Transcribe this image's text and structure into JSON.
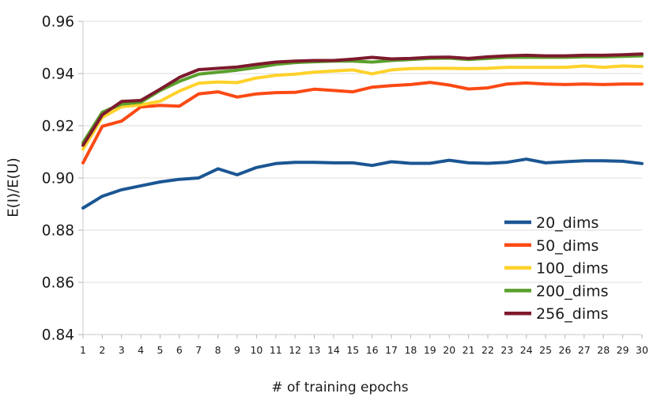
{
  "chart_data": {
    "type": "line",
    "title": "",
    "xlabel": "# of training epochs",
    "ylabel": "E(I)/E(U)",
    "x": [
      1,
      2,
      3,
      4,
      5,
      6,
      7,
      8,
      9,
      10,
      11,
      12,
      13,
      14,
      15,
      16,
      17,
      18,
      19,
      20,
      21,
      22,
      23,
      24,
      25,
      26,
      27,
      28,
      29,
      30
    ],
    "ylim": [
      0.84,
      0.96
    ],
    "ytick_step": 0.02,
    "grid": "horizontal",
    "legend_position": "inside-bottom-right",
    "series": [
      {
        "name": "20_dims",
        "color": "#1b5693",
        "values": [
          0.8885,
          0.893,
          0.8955,
          0.897,
          0.8985,
          0.8995,
          0.9,
          0.9035,
          0.9012,
          0.904,
          0.9055,
          0.906,
          0.906,
          0.9058,
          0.9058,
          0.9048,
          0.9062,
          0.9056,
          0.9056,
          0.9068,
          0.9058,
          0.9056,
          0.906,
          0.9072,
          0.9058,
          0.9062,
          0.9066,
          0.9066,
          0.9064,
          0.9055
        ]
      },
      {
        "name": "50_dims",
        "color": "#fb4a14",
        "values": [
          0.9058,
          0.9198,
          0.9218,
          0.9272,
          0.9278,
          0.9275,
          0.9322,
          0.933,
          0.931,
          0.9322,
          0.9327,
          0.9328,
          0.934,
          0.9335,
          0.933,
          0.9348,
          0.9354,
          0.9358,
          0.9366,
          0.9356,
          0.9341,
          0.9345,
          0.936,
          0.9364,
          0.936,
          0.9358,
          0.936,
          0.9358,
          0.936,
          0.936
        ]
      },
      {
        "name": "100_dims",
        "color": "#ffd22a",
        "values": [
          0.911,
          0.9232,
          0.9273,
          0.928,
          0.9294,
          0.9333,
          0.9363,
          0.9368,
          0.9365,
          0.9383,
          0.9393,
          0.9398,
          0.9405,
          0.941,
          0.9414,
          0.9399,
          0.9414,
          0.9419,
          0.942,
          0.942,
          0.9419,
          0.942,
          0.9424,
          0.9424,
          0.9424,
          0.9424,
          0.9429,
          0.9424,
          0.9429,
          0.9427
        ]
      },
      {
        "name": "200_dims",
        "color": "#5aa02d",
        "values": [
          0.9135,
          0.9252,
          0.9283,
          0.929,
          0.9335,
          0.937,
          0.9398,
          0.9405,
          0.9413,
          0.9423,
          0.9435,
          0.9442,
          0.9445,
          0.9448,
          0.9448,
          0.9444,
          0.945,
          0.9454,
          0.9458,
          0.9459,
          0.9454,
          0.9458,
          0.9462,
          0.9462,
          0.9462,
          0.9462,
          0.9464,
          0.9464,
          0.9466,
          0.9468
        ]
      },
      {
        "name": "256_dims",
        "color": "#7d1a2d",
        "values": [
          0.9125,
          0.9242,
          0.9293,
          0.9297,
          0.934,
          0.9385,
          0.9415,
          0.942,
          0.9425,
          0.9435,
          0.9444,
          0.9448,
          0.945,
          0.945,
          0.9455,
          0.9462,
          0.9456,
          0.9458,
          0.9462,
          0.9463,
          0.9458,
          0.9464,
          0.9468,
          0.947,
          0.9468,
          0.9468,
          0.947,
          0.947,
          0.9472,
          0.9475
        ]
      }
    ],
    "colors": {
      "grid": "#dedede",
      "axis": "#c8c8c8",
      "tick": "#b5b5b5",
      "text": "#1a1a1a",
      "background": "#ffffff"
    }
  }
}
